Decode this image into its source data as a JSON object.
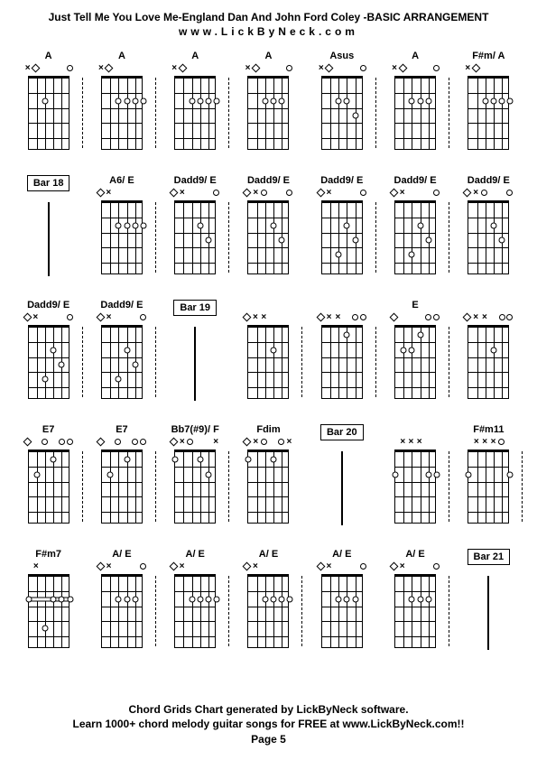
{
  "title": "Just Tell Me You Love Me-England Dan And John Ford Coley -BASIC ARRANGEMENT",
  "subtitle": "www.LickByNeck.com",
  "footer": {
    "line1": "Chord Grids Chart generated by LickByNeck software.",
    "line2": "Learn 1000+ chord melody guitar songs for FREE at www.LickByNeck.com!!",
    "line3": "Page 5"
  },
  "colors": {
    "bg": "#ffffff",
    "fg": "#000000"
  },
  "layout": {
    "rows": 5,
    "cols": 7,
    "frets": 5,
    "strings": 6
  },
  "cells": [
    {
      "type": "chord",
      "label": "A",
      "markers": [
        "x",
        "d",
        "_0",
        "_0",
        "_0",
        "o"
      ],
      "dots": [
        [
          2,
          3
        ]
      ],
      "dashes": true
    },
    {
      "type": "chord",
      "label": "A",
      "markers": [
        "x",
        "d",
        "_0",
        "_0",
        "_0",
        "_0"
      ],
      "dots": [
        [
          2,
          3
        ],
        [
          2,
          4
        ],
        [
          2,
          5
        ],
        [
          2,
          6
        ]
      ],
      "dashes": true
    },
    {
      "type": "chord",
      "label": "A",
      "markers": [
        "x",
        "d",
        "_0",
        "_0",
        "_0",
        "_0"
      ],
      "dots": [
        [
          2,
          3
        ],
        [
          2,
          4
        ],
        [
          2,
          5
        ],
        [
          2,
          6
        ]
      ],
      "dashes": true
    },
    {
      "type": "chord",
      "label": "A",
      "markers": [
        "x",
        "d",
        "_0",
        "_0",
        "_0",
        "o"
      ],
      "dots": [
        [
          2,
          3
        ],
        [
          2,
          4
        ],
        [
          2,
          5
        ]
      ],
      "dashes": false
    },
    {
      "type": "chord",
      "label": "Asus",
      "markers": [
        "x",
        "d",
        "_0",
        "_0",
        "_0",
        "o"
      ],
      "dots": [
        [
          2,
          3
        ],
        [
          2,
          4
        ],
        [
          3,
          5
        ]
      ],
      "dashes": true
    },
    {
      "type": "chord",
      "label": "A",
      "markers": [
        "x",
        "d",
        "_0",
        "_0",
        "_0",
        "o"
      ],
      "dots": [
        [
          2,
          3
        ],
        [
          2,
          4
        ],
        [
          2,
          5
        ]
      ],
      "dashes": true
    },
    {
      "type": "chord",
      "label": "F#m/ A",
      "markers": [
        "x",
        "d",
        "_0",
        "_0",
        "_0",
        "_0"
      ],
      "dots": [
        [
          2,
          3
        ],
        [
          2,
          4
        ],
        [
          2,
          5
        ],
        [
          2,
          6
        ]
      ],
      "dashes": false
    },
    {
      "type": "bar",
      "label": "Bar 18"
    },
    {
      "type": "chord",
      "label": "A6/ E",
      "markers": [
        "d",
        "x",
        "_0",
        "_0",
        "_0",
        "_0"
      ],
      "dots": [
        [
          2,
          3
        ],
        [
          2,
          4
        ],
        [
          2,
          5
        ],
        [
          2,
          6
        ]
      ],
      "dashes": true
    },
    {
      "type": "chord",
      "label": "Dadd9/ E",
      "markers": [
        "d",
        "x",
        "_0",
        "_0",
        "_0",
        "o"
      ],
      "dots": [
        [
          2,
          4
        ],
        [
          3,
          5
        ]
      ],
      "dashes": true
    },
    {
      "type": "chord",
      "label": "Dadd9/ E",
      "markers": [
        "d",
        "x",
        "o",
        "_0",
        "_0",
        "o"
      ],
      "dots": [
        [
          2,
          4
        ],
        [
          3,
          5
        ]
      ],
      "dashes": false
    },
    {
      "type": "chord",
      "label": "Dadd9/ E",
      "markers": [
        "d",
        "x",
        "_0",
        "_0",
        "_0",
        "o"
      ],
      "dots": [
        [
          2,
          4
        ],
        [
          3,
          5
        ],
        [
          4,
          3
        ]
      ],
      "dashes": true
    },
    {
      "type": "chord",
      "label": "Dadd9/ E",
      "markers": [
        "d",
        "x",
        "_0",
        "_0",
        "_0",
        "o"
      ],
      "dots": [
        [
          2,
          4
        ],
        [
          3,
          5
        ],
        [
          4,
          3
        ]
      ],
      "dashes": true
    },
    {
      "type": "chord",
      "label": "Dadd9/ E",
      "markers": [
        "d",
        "x",
        "o",
        "_0",
        "_0",
        "o"
      ],
      "dots": [
        [
          2,
          4
        ],
        [
          3,
          5
        ]
      ],
      "dashes": false
    },
    {
      "type": "chord",
      "label": "Dadd9/ E",
      "markers": [
        "d",
        "x",
        "_0",
        "_0",
        "_0",
        "o"
      ],
      "dots": [
        [
          2,
          4
        ],
        [
          3,
          5
        ],
        [
          4,
          3
        ]
      ],
      "dashes": true
    },
    {
      "type": "chord",
      "label": "Dadd9/ E",
      "markers": [
        "d",
        "x",
        "_0",
        "_0",
        "_0",
        "o"
      ],
      "dots": [
        [
          2,
          4
        ],
        [
          3,
          5
        ],
        [
          4,
          3
        ]
      ],
      "dashes": true
    },
    {
      "type": "bar",
      "label": "Bar 19"
    },
    {
      "type": "chord",
      "label": "",
      "markers": [
        "d",
        "x",
        "x",
        "_0",
        "_0",
        "_0"
      ],
      "dots": [
        [
          2,
          4
        ]
      ],
      "dashes": true
    },
    {
      "type": "chord",
      "label": "",
      "markers": [
        "d",
        "x",
        "x",
        "_0",
        "o",
        "o"
      ],
      "dots": [
        [
          1,
          4
        ]
      ],
      "dashes": true
    },
    {
      "type": "chord",
      "label": "E",
      "markers": [
        "d",
        "_0",
        "_0",
        "_0",
        "o",
        "o"
      ],
      "dots": [
        [
          1,
          4
        ],
        [
          2,
          2
        ],
        [
          2,
          3
        ]
      ],
      "dashes": true
    },
    {
      "type": "chord",
      "label": "",
      "markers": [
        "d",
        "x",
        "x",
        "_0",
        "o",
        "o"
      ],
      "dots": [
        [
          2,
          4
        ]
      ],
      "dashes": false
    },
    {
      "type": "chord",
      "label": "E7",
      "markers": [
        "d",
        "_0",
        "o",
        "_0",
        "o",
        "o"
      ],
      "dots": [
        [
          1,
          4
        ],
        [
          2,
          2
        ]
      ],
      "dashes": true
    },
    {
      "type": "chord",
      "label": "E7",
      "markers": [
        "d",
        "_0",
        "o",
        "_0",
        "o",
        "o"
      ],
      "dots": [
        [
          1,
          4
        ],
        [
          2,
          2
        ]
      ],
      "dashes": true
    },
    {
      "type": "chord",
      "label": "Bb7(#9)/ F",
      "markers": [
        "d",
        "x",
        "o",
        "_0",
        "_0",
        "x"
      ],
      "dots": [
        [
          1,
          1
        ],
        [
          1,
          4
        ],
        [
          2,
          5
        ]
      ],
      "barre": {
        "fret": 1,
        "from": 1,
        "to": 1
      },
      "dashes": true
    },
    {
      "type": "chord",
      "label": "Fdim",
      "markers": [
        "d",
        "x",
        "o",
        "_0",
        "o",
        "x"
      ],
      "dots": [
        [
          1,
          1
        ],
        [
          1,
          4
        ]
      ],
      "barre": {
        "fret": 1,
        "from": 1,
        "to": 1
      },
      "dashes": false
    },
    {
      "type": "bar",
      "label": "Bar 20"
    },
    {
      "type": "chord",
      "label": "",
      "markers": [
        "_0",
        "x",
        "x",
        "x",
        "_0",
        "_0"
      ],
      "dots": [
        [
          2,
          1
        ],
        [
          2,
          5
        ],
        [
          2,
          6
        ]
      ],
      "dashes": true
    },
    {
      "type": "chord",
      "label": "F#m11",
      "markers": [
        "_0",
        "x",
        "x",
        "x",
        "o",
        "_0"
      ],
      "dots": [
        [
          2,
          1
        ],
        [
          2,
          6
        ]
      ],
      "dashes": true
    },
    {
      "type": "chord",
      "label": "F#m7",
      "markers": [
        "_0",
        "x",
        "_0",
        "_0",
        "_0",
        "_0"
      ],
      "dots": [
        [
          2,
          1
        ],
        [
          2,
          4
        ],
        [
          2,
          5
        ],
        [
          2,
          6
        ],
        [
          4,
          3
        ]
      ],
      "barre": {
        "fret": 2,
        "from": 1,
        "to": 6
      },
      "dashes": false
    },
    {
      "type": "chord",
      "label": "A/ E",
      "markers": [
        "d",
        "x",
        "_0",
        "_0",
        "_0",
        "o"
      ],
      "dots": [
        [
          2,
          3
        ],
        [
          2,
          4
        ],
        [
          2,
          5
        ]
      ],
      "dashes": true
    },
    {
      "type": "chord",
      "label": "A/ E",
      "markers": [
        "d",
        "x",
        "_0",
        "_0",
        "_0",
        "_0"
      ],
      "dots": [
        [
          2,
          3
        ],
        [
          2,
          4
        ],
        [
          2,
          5
        ],
        [
          2,
          6
        ]
      ],
      "dashes": true
    },
    {
      "type": "chord",
      "label": "A/ E",
      "markers": [
        "d",
        "x",
        "_0",
        "_0",
        "_0",
        "_0"
      ],
      "dots": [
        [
          2,
          3
        ],
        [
          2,
          4
        ],
        [
          2,
          5
        ],
        [
          2,
          6
        ]
      ],
      "dashes": true
    },
    {
      "type": "chord",
      "label": "A/ E",
      "markers": [
        "d",
        "x",
        "_0",
        "_0",
        "_0",
        "o"
      ],
      "dots": [
        [
          2,
          3
        ],
        [
          2,
          4
        ],
        [
          2,
          5
        ]
      ],
      "dashes": false
    },
    {
      "type": "chord",
      "label": "A/ E",
      "markers": [
        "d",
        "x",
        "_0",
        "_0",
        "_0",
        "o"
      ],
      "dots": [
        [
          2,
          3
        ],
        [
          2,
          4
        ],
        [
          2,
          5
        ]
      ],
      "dashes": true
    },
    {
      "type": "bar",
      "label": "Bar 21"
    }
  ]
}
